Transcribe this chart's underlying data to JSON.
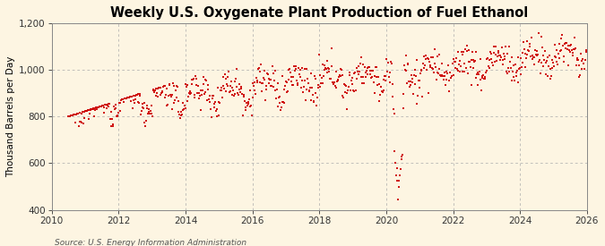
{
  "title": "Weekly U.S. Oxygenate Plant Production of Fuel Ethanol",
  "ylabel": "Thousand Barrels per Day",
  "source": "Source: U.S. Energy Information Administration",
  "ylim": [
    400,
    1200
  ],
  "xlim": [
    2010.0,
    2026.0
  ],
  "yticks": [
    400,
    600,
    800,
    1000,
    1200
  ],
  "ytick_labels": [
    "400",
    "600",
    "800",
    "1,000",
    "1,200"
  ],
  "xticks": [
    2010,
    2012,
    2014,
    2016,
    2018,
    2020,
    2022,
    2024,
    2026
  ],
  "dot_color": "#CC0000",
  "background_color": "#FDF5E2",
  "grid_color": "#AAAAAA",
  "title_fontsize": 10.5,
  "label_fontsize": 7.5,
  "tick_fontsize": 7.5,
  "source_fontsize": 6.5
}
